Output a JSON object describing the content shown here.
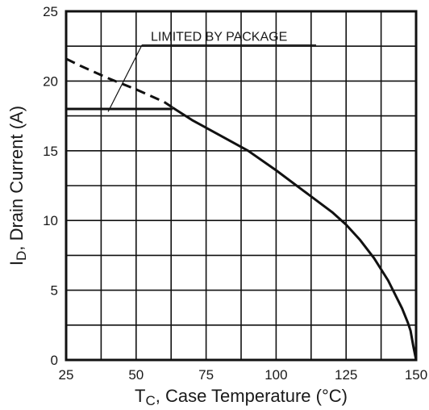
{
  "chart_data": {
    "type": "line",
    "title": "",
    "xlabel": {
      "main": "T",
      "sub": "C",
      "rest": ", Case Temperature  (",
      "unit": "°C",
      "close": ")"
    },
    "ylabel": {
      "main": "I",
      "sub": "D",
      "rest": ", Drain Current (A)"
    },
    "xlim": [
      25,
      150
    ],
    "ylim": [
      0,
      25
    ],
    "x_ticks": [
      25,
      50,
      75,
      100,
      125,
      150
    ],
    "y_ticks": [
      0,
      5,
      10,
      15,
      20,
      25
    ],
    "grid": true,
    "grid_x_step": 12.5,
    "grid_y_step": 2.5,
    "annotation": "LIMITED BY PACKAGE",
    "series": [
      {
        "style": "dashed",
        "x": [
          25,
          30,
          40,
          50,
          60,
          63
        ],
        "y": [
          21.6,
          21.1,
          20.2,
          19.4,
          18.5,
          18.1
        ]
      },
      {
        "style": "solid",
        "x": [
          25,
          63
        ],
        "y": [
          18,
          18
        ]
      },
      {
        "style": "solid",
        "x": [
          63,
          70,
          80,
          90,
          100,
          110,
          120,
          125,
          130,
          135,
          140,
          145,
          147,
          148,
          149,
          150
        ],
        "y": [
          18.1,
          17.2,
          16.1,
          15.0,
          13.6,
          12.1,
          10.6,
          9.7,
          8.6,
          7.3,
          5.7,
          3.7,
          2.7,
          2.1,
          1.0,
          0
        ]
      }
    ]
  }
}
